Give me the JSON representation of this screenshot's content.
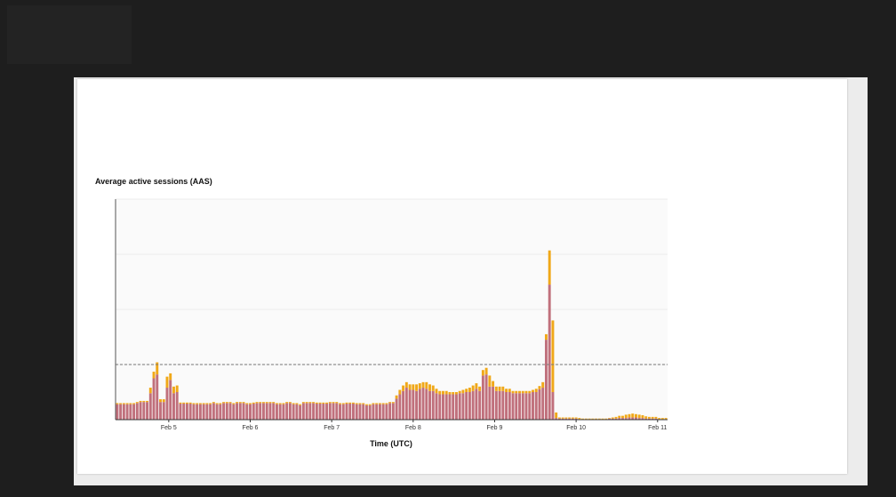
{
  "chart_data": {
    "type": "bar",
    "title": "Average active sessions (AAS)",
    "xlabel": "Time (UTC)",
    "ylabel": "",
    "x_ticks": [
      {
        "label": "Feb 5",
        "index": 15.5
      },
      {
        "label": "Feb 6",
        "index": 40
      },
      {
        "label": "Feb 7",
        "index": 64.5
      },
      {
        "label": "Feb 8",
        "index": 89
      },
      {
        "label": "Feb 9",
        "index": 113.5
      },
      {
        "label": "Feb 10",
        "index": 138
      },
      {
        "label": "Feb 11",
        "index": 162.5
      }
    ],
    "ylim": [
      0,
      4
    ],
    "y_gridlines": [
      1,
      2,
      3,
      4
    ],
    "reference_line": 1,
    "colors": {
      "series1": "#c0707c",
      "series2": "#f0a818",
      "reference": "#777777"
    },
    "series": [
      {
        "name": "",
        "values": [
          0.28,
          0.28,
          0.28,
          0.28,
          0.28,
          0.28,
          0.3,
          0.32,
          0.32,
          0.32,
          0.48,
          0.75,
          0.82,
          0.32,
          0.32,
          0.58,
          0.72,
          0.48,
          0.5,
          0.29,
          0.29,
          0.29,
          0.29,
          0.28,
          0.28,
          0.28,
          0.28,
          0.28,
          0.28,
          0.3,
          0.28,
          0.28,
          0.3,
          0.3,
          0.3,
          0.28,
          0.3,
          0.3,
          0.3,
          0.28,
          0.28,
          0.29,
          0.3,
          0.3,
          0.3,
          0.3,
          0.3,
          0.3,
          0.28,
          0.28,
          0.28,
          0.3,
          0.3,
          0.28,
          0.28,
          0.26,
          0.3,
          0.3,
          0.3,
          0.3,
          0.29,
          0.29,
          0.29,
          0.29,
          0.3,
          0.3,
          0.3,
          0.28,
          0.28,
          0.29,
          0.29,
          0.29,
          0.28,
          0.28,
          0.28,
          0.26,
          0.26,
          0.28,
          0.28,
          0.28,
          0.28,
          0.28,
          0.3,
          0.3,
          0.38,
          0.46,
          0.52,
          0.58,
          0.54,
          0.54,
          0.52,
          0.56,
          0.58,
          0.56,
          0.52,
          0.52,
          0.48,
          0.46,
          0.46,
          0.46,
          0.46,
          0.46,
          0.46,
          0.48,
          0.48,
          0.5,
          0.5,
          0.52,
          0.56,
          0.52,
          0.8,
          0.82,
          0.6,
          0.6,
          0.52,
          0.52,
          0.52,
          0.5,
          0.5,
          0.48,
          0.48,
          0.48,
          0.48,
          0.48,
          0.48,
          0.5,
          0.5,
          0.55,
          0.58,
          1.45,
          2.45,
          0.5,
          0.03,
          0.02,
          0.02,
          0.02,
          0.02,
          0.02,
          0.02,
          0.01,
          0.01,
          0.01,
          0.01,
          0.01,
          0.01,
          0.01,
          0.01,
          0.01,
          0.02,
          0.02,
          0.02,
          0.03,
          0.03,
          0.03,
          0.04,
          0.04,
          0.04,
          0.03,
          0.03,
          0.02,
          0.02,
          0.02,
          0.02,
          0.01,
          0.01,
          0.01
        ]
      },
      {
        "name": "",
        "values": [
          0.02,
          0.02,
          0.02,
          0.02,
          0.02,
          0.02,
          0.02,
          0.02,
          0.02,
          0.02,
          0.1,
          0.12,
          0.22,
          0.05,
          0.05,
          0.2,
          0.12,
          0.12,
          0.12,
          0.02,
          0.02,
          0.02,
          0.02,
          0.02,
          0.02,
          0.02,
          0.02,
          0.02,
          0.02,
          0.02,
          0.02,
          0.02,
          0.02,
          0.02,
          0.02,
          0.02,
          0.02,
          0.02,
          0.02,
          0.02,
          0.02,
          0.02,
          0.02,
          0.02,
          0.02,
          0.02,
          0.02,
          0.02,
          0.02,
          0.02,
          0.02,
          0.02,
          0.02,
          0.02,
          0.02,
          0.02,
          0.02,
          0.02,
          0.02,
          0.02,
          0.02,
          0.02,
          0.02,
          0.02,
          0.02,
          0.02,
          0.02,
          0.02,
          0.02,
          0.02,
          0.02,
          0.02,
          0.02,
          0.02,
          0.02,
          0.02,
          0.02,
          0.02,
          0.02,
          0.02,
          0.02,
          0.02,
          0.02,
          0.02,
          0.06,
          0.08,
          0.1,
          0.1,
          0.1,
          0.1,
          0.12,
          0.1,
          0.1,
          0.12,
          0.12,
          0.1,
          0.08,
          0.06,
          0.06,
          0.06,
          0.04,
          0.04,
          0.04,
          0.04,
          0.06,
          0.06,
          0.08,
          0.1,
          0.1,
          0.08,
          0.1,
          0.12,
          0.2,
          0.1,
          0.08,
          0.08,
          0.08,
          0.06,
          0.06,
          0.04,
          0.04,
          0.04,
          0.04,
          0.04,
          0.04,
          0.04,
          0.06,
          0.06,
          0.1,
          0.1,
          0.62,
          1.3,
          0.1,
          0.02,
          0.02,
          0.02,
          0.02,
          0.02,
          0.02,
          0.02,
          0.01,
          0.01,
          0.01,
          0.01,
          0.01,
          0.01,
          0.01,
          0.01,
          0.01,
          0.02,
          0.03,
          0.04,
          0.04,
          0.06,
          0.06,
          0.07,
          0.06,
          0.06,
          0.05,
          0.04,
          0.03,
          0.03,
          0.03,
          0.02,
          0.02,
          0.02,
          0.02
        ]
      }
    ]
  }
}
